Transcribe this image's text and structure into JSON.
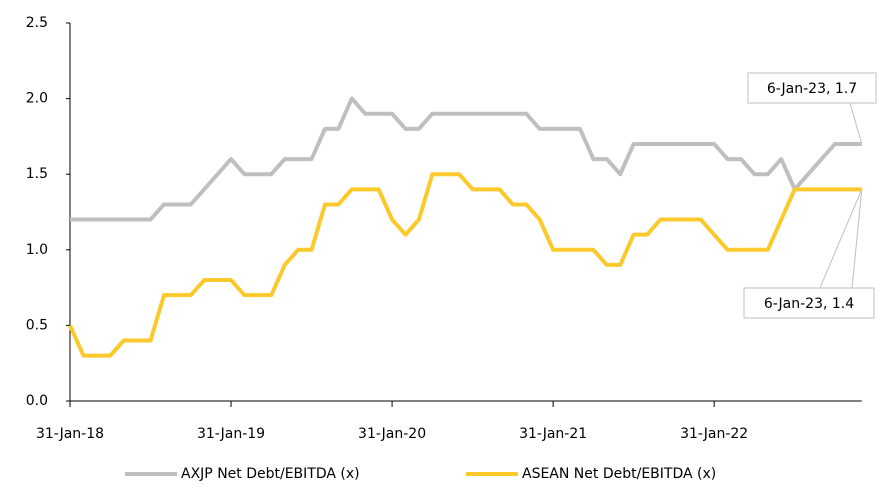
{
  "chart_data": {
    "type": "line",
    "categories": [
      "31-Jan-18",
      null,
      null,
      null,
      null,
      null,
      null,
      null,
      null,
      null,
      null,
      null,
      "31-Jan-19",
      null,
      null,
      null,
      null,
      null,
      null,
      null,
      null,
      null,
      null,
      null,
      "31-Jan-20",
      null,
      null,
      null,
      null,
      null,
      null,
      null,
      null,
      null,
      null,
      null,
      "31-Jan-21",
      null,
      null,
      null,
      null,
      null,
      null,
      null,
      null,
      null,
      null,
      null,
      "31-Jan-22",
      null,
      null,
      null,
      null,
      null,
      null,
      null,
      null,
      null,
      null,
      null
    ],
    "series": [
      {
        "name": "AXJP Net Debt/EBITDA (x)",
        "color": "#bfbfbf",
        "values": [
          1.2,
          1.2,
          1.2,
          1.2,
          1.2,
          1.2,
          1.2,
          1.3,
          1.3,
          1.3,
          1.4,
          1.5,
          1.6,
          1.5,
          1.5,
          1.5,
          1.6,
          1.6,
          1.6,
          1.8,
          1.8,
          2.0,
          1.9,
          1.9,
          1.9,
          1.8,
          1.8,
          1.9,
          1.9,
          1.9,
          1.9,
          1.9,
          1.9,
          1.9,
          1.9,
          1.8,
          1.8,
          1.8,
          1.8,
          1.6,
          1.6,
          1.5,
          1.7,
          1.7,
          1.7,
          1.7,
          1.7,
          1.7,
          1.7,
          1.6,
          1.6,
          1.5,
          1.5,
          1.6,
          1.4,
          1.5,
          1.6,
          1.7,
          1.7,
          1.7
        ]
      },
      {
        "name": "ASEAN Net Debt/EBITDA (x)",
        "color": "#fcc92c",
        "values": [
          0.5,
          0.3,
          0.3,
          0.3,
          0.4,
          0.4,
          0.4,
          0.7,
          0.7,
          0.7,
          0.8,
          0.8,
          0.8,
          0.7,
          0.7,
          0.7,
          0.9,
          1.0,
          1.0,
          1.3,
          1.3,
          1.4,
          1.4,
          1.4,
          1.2,
          1.1,
          1.2,
          1.5,
          1.5,
          1.5,
          1.4,
          1.4,
          1.4,
          1.3,
          1.3,
          1.2,
          1.0,
          1.0,
          1.0,
          1.0,
          0.9,
          0.9,
          1.1,
          1.1,
          1.2,
          1.2,
          1.2,
          1.2,
          1.1,
          1.0,
          1.0,
          1.0,
          1.0,
          1.2,
          1.4,
          1.4,
          1.4,
          1.4,
          1.4,
          1.4
        ]
      }
    ],
    "annotations": [
      "6-Jan-23, 1.7",
      "6-Jan-23, 1.4"
    ],
    "ylim": [
      0,
      2.5
    ],
    "yticks": [
      {
        "value": 0,
        "label": "0.0"
      },
      0.5,
      {
        "value": 1,
        "label": "1.0"
      },
      1.5,
      {
        "value": 2,
        "label": "2.0"
      },
      2.5
    ],
    "grid": false,
    "legend": "bottom"
  }
}
